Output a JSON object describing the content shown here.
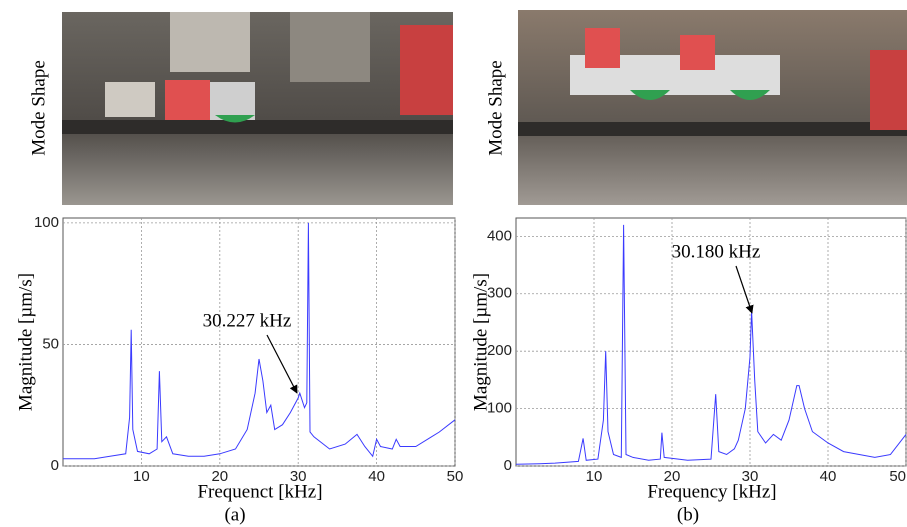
{
  "chart_data": [
    {
      "type": "line",
      "xlabel": "Frequenct [kHz]",
      "ylabel": "Magnitude [µm/s]",
      "annotation": "30.227 kHz",
      "xlim": [
        0,
        50
      ],
      "xticks": [
        10,
        20,
        30,
        40,
        50
      ],
      "ylim": [
        0,
        102
      ],
      "yticks": [
        0,
        50,
        100
      ],
      "grid": true,
      "series": [
        {
          "color": "#3a3aff",
          "x": [
            0,
            2,
            4,
            6,
            8,
            8.5,
            8.7,
            8.9,
            9.5,
            11,
            12,
            12.3,
            12.6,
            13.2,
            14,
            16,
            18,
            20,
            22,
            23.5,
            24.5,
            25,
            25.5,
            26,
            26.5,
            27,
            28,
            29,
            30,
            30.2,
            30.8,
            31.1,
            31.3,
            31.5,
            32,
            34,
            36,
            37.5,
            38.5,
            39.5,
            40,
            40.5,
            42,
            42.5,
            43,
            45,
            47,
            48,
            50
          ],
          "values": [
            3,
            3,
            3,
            4,
            5,
            20,
            56,
            15,
            6,
            5,
            7,
            39,
            10,
            12,
            5,
            4,
            4,
            5,
            7,
            15,
            30,
            44,
            35,
            22,
            25,
            15,
            17,
            22,
            28,
            30,
            24,
            26,
            100,
            14,
            12,
            7,
            9,
            13,
            8,
            4,
            11,
            8,
            7,
            11,
            8,
            8,
            12,
            14,
            19
          ]
        }
      ]
    },
    {
      "type": "line",
      "xlabel": "Frequency [kHz]",
      "ylabel": "Magnitude [µm/s]",
      "annotation": "30.180 kHz",
      "xlim": [
        0,
        50
      ],
      "xticks": [
        10,
        20,
        30,
        40,
        50
      ],
      "ylim": [
        0,
        432
      ],
      "yticks": [
        0,
        100,
        200,
        300,
        400
      ],
      "grid": true,
      "series": [
        {
          "color": "#3a3aff",
          "x": [
            0,
            3,
            5,
            8,
            8.6,
            9,
            10.5,
            11.2,
            11.5,
            11.8,
            12.5,
            13.5,
            13.8,
            14.1,
            15,
            17,
            18.5,
            18.7,
            19,
            22,
            25,
            25.6,
            26,
            27,
            28,
            28.5,
            29.4,
            30,
            30.2,
            30.6,
            31,
            32,
            33,
            34,
            35,
            36,
            36.3,
            37,
            38,
            40,
            42,
            44,
            46,
            48,
            50
          ],
          "values": [
            3,
            4,
            5,
            8,
            48,
            10,
            12,
            80,
            200,
            60,
            20,
            15,
            420,
            20,
            15,
            10,
            12,
            58,
            15,
            10,
            12,
            125,
            25,
            20,
            30,
            45,
            100,
            190,
            270,
            150,
            60,
            40,
            55,
            45,
            80,
            140,
            140,
            100,
            60,
            40,
            25,
            20,
            15,
            20,
            55
          ]
        }
      ]
    }
  ],
  "figure": {
    "photo_labels": [
      "Mode Shape",
      "Mode Shape"
    ],
    "panel_labels": [
      "(a)",
      "(b)"
    ]
  }
}
